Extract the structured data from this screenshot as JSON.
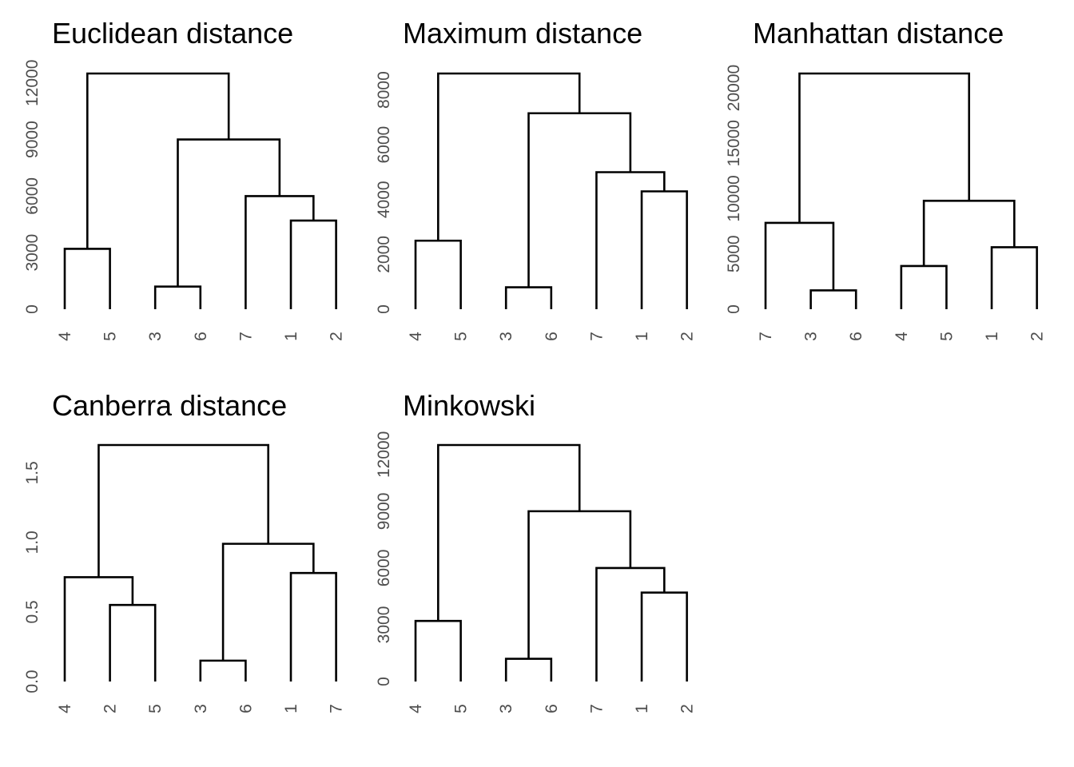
{
  "chart_data": [
    {
      "type": "dendrogram",
      "title": "Euclidean distance",
      "ylim": [
        0,
        12500
      ],
      "y_ticks": [
        0,
        3000,
        6000,
        9000,
        12000
      ],
      "y_tick_labels": [
        "0",
        "3000",
        "6000",
        "9000",
        "12000"
      ],
      "leaf_order": [
        "4",
        "5",
        "3",
        "6",
        "7",
        "1",
        "2"
      ],
      "merges": [
        {
          "left": "4",
          "right": "5",
          "height": 3200
        },
        {
          "left": "3",
          "right": "6",
          "height": 1200
        },
        {
          "left": "1",
          "right": "2",
          "height": 4700
        },
        {
          "left": "7",
          "right": "1+2",
          "height": 6000
        },
        {
          "left": "3+6",
          "right": "7+1+2",
          "height": 9000
        },
        {
          "left": "4+5",
          "right": "3+6+7+1+2",
          "height": 12500
        }
      ]
    },
    {
      "type": "dendrogram",
      "title": "Maximum distance",
      "ylim": [
        0,
        8600
      ],
      "y_ticks": [
        0,
        2000,
        4000,
        6000,
        8000
      ],
      "y_tick_labels": [
        "0",
        "2000",
        "4000",
        "6000",
        "8000"
      ],
      "leaf_order": [
        "4",
        "5",
        "3",
        "6",
        "7",
        "1",
        "2"
      ],
      "merges": [
        {
          "left": "4",
          "right": "5",
          "height": 2500
        },
        {
          "left": "3",
          "right": "6",
          "height": 800
        },
        {
          "left": "1",
          "right": "2",
          "height": 4300
        },
        {
          "left": "7",
          "right": "1+2",
          "height": 5000
        },
        {
          "left": "3+6",
          "right": "7+1+2",
          "height": 7150
        },
        {
          "left": "4+5",
          "right": "3+6+7+1+2",
          "height": 8600
        }
      ]
    },
    {
      "type": "dendrogram",
      "title": "Manhattan distance",
      "ylim": [
        0,
        21300
      ],
      "y_ticks": [
        0,
        5000,
        10000,
        15000,
        20000
      ],
      "y_tick_labels": [
        "0",
        "5000",
        "10000",
        "15000",
        "20000"
      ],
      "leaf_order": [
        "7",
        "3",
        "6",
        "4",
        "5",
        "1",
        "2"
      ],
      "merges": [
        {
          "left": "3",
          "right": "6",
          "height": 1700
        },
        {
          "left": "7",
          "right": "3+6",
          "height": 7800
        },
        {
          "left": "4",
          "right": "5",
          "height": 3900
        },
        {
          "left": "1",
          "right": "2",
          "height": 5600
        },
        {
          "left": "4+5",
          "right": "1+2",
          "height": 9800
        },
        {
          "left": "7+3+6",
          "right": "4+5+1+2",
          "height": 21300
        }
      ]
    },
    {
      "type": "dendrogram",
      "title": "Canberra distance",
      "ylim": [
        0,
        1.7
      ],
      "y_ticks": [
        0,
        0.5,
        1,
        1.5
      ],
      "y_tick_labels": [
        "0.0",
        "0.5",
        "1.0",
        "1.5"
      ],
      "leaf_order": [
        "4",
        "2",
        "5",
        "3",
        "6",
        "1",
        "7"
      ],
      "merges": [
        {
          "left": "2",
          "right": "5",
          "height": 0.55
        },
        {
          "left": "4",
          "right": "2+5",
          "height": 0.75
        },
        {
          "left": "3",
          "right": "6",
          "height": 0.15
        },
        {
          "left": "1",
          "right": "7",
          "height": 0.78
        },
        {
          "left": "3+6",
          "right": "1+7",
          "height": 0.99
        },
        {
          "left": "4+2+5",
          "right": "3+6+1+7",
          "height": 1.7
        }
      ]
    },
    {
      "type": "dendrogram",
      "title": "Minkowski",
      "ylim": [
        0,
        12500
      ],
      "y_ticks": [
        0,
        3000,
        6000,
        9000,
        12000
      ],
      "y_tick_labels": [
        "0",
        "3000",
        "6000",
        "9000",
        "12000"
      ],
      "leaf_order": [
        "4",
        "5",
        "3",
        "6",
        "7",
        "1",
        "2"
      ],
      "merges": [
        {
          "left": "4",
          "right": "5",
          "height": 3200
        },
        {
          "left": "3",
          "right": "6",
          "height": 1200
        },
        {
          "left": "1",
          "right": "2",
          "height": 4700
        },
        {
          "left": "7",
          "right": "1+2",
          "height": 6000
        },
        {
          "left": "3+6",
          "right": "7+1+2",
          "height": 9000
        },
        {
          "left": "4+5",
          "right": "3+6+7+1+2",
          "height": 12500
        }
      ]
    }
  ]
}
